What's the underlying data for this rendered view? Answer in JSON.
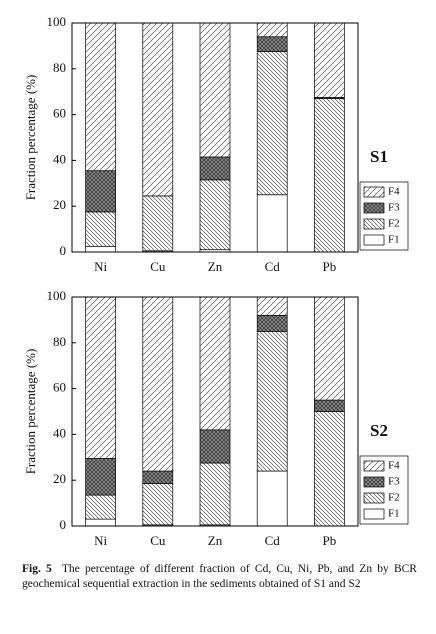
{
  "chart_data": [
    {
      "type": "stacked_bar",
      "title": "S1",
      "y_label": "Fraction percentage (%)",
      "categories": [
        "Ni",
        "Cu",
        "Zn",
        "Cd",
        "Pb"
      ],
      "series": [
        {
          "name": "F1",
          "color": "#ffffff",
          "hatch": "none",
          "values": [
            2.5,
            0.5,
            1,
            25,
            0
          ]
        },
        {
          "name": "F2",
          "color": "#ffffff",
          "hatch": "back",
          "values": [
            15,
            24,
            30.5,
            62.5,
            67
          ]
        },
        {
          "name": "F3",
          "color": "#8a8a8a",
          "hatch": "cross",
          "values": [
            18,
            0,
            10,
            6.5,
            0.5
          ]
        },
        {
          "name": "F4",
          "color": "#ffffff",
          "hatch": "forward",
          "values": [
            64.5,
            75.5,
            58.5,
            6,
            32.5
          ]
        }
      ],
      "ylim": [
        0,
        100
      ],
      "yticks": [
        0,
        20,
        40,
        60,
        80,
        100
      ],
      "legend": "lower right"
    },
    {
      "type": "stacked_bar",
      "title": "S2",
      "y_label": "Fraction percentage (%)",
      "categories": [
        "Ni",
        "Cu",
        "Zn",
        "Cd",
        "Pb"
      ],
      "series": [
        {
          "name": "F1",
          "color": "#ffffff",
          "hatch": "none",
          "values": [
            3,
            0.5,
            0.5,
            24,
            0
          ]
        },
        {
          "name": "F2",
          "color": "#ffffff",
          "hatch": "back",
          "values": [
            10.5,
            18,
            27,
            61,
            50
          ]
        },
        {
          "name": "F3",
          "color": "#8a8a8a",
          "hatch": "cross",
          "values": [
            16,
            5.5,
            14.5,
            7,
            5
          ]
        },
        {
          "name": "F4",
          "color": "#ffffff",
          "hatch": "forward",
          "values": [
            70.5,
            76,
            58,
            8,
            45
          ]
        }
      ],
      "ylim": [
        0,
        100
      ],
      "yticks": [
        0,
        20,
        40,
        60,
        80,
        100
      ],
      "legend": "lower right"
    }
  ],
  "caption": {
    "label": "Fig. 5",
    "text": "The percentage of different fraction of Cd, Cu, Ni, Pb, and Zn by BCR geochemical sequential extraction in the sediments obtained of S1 and S2"
  }
}
